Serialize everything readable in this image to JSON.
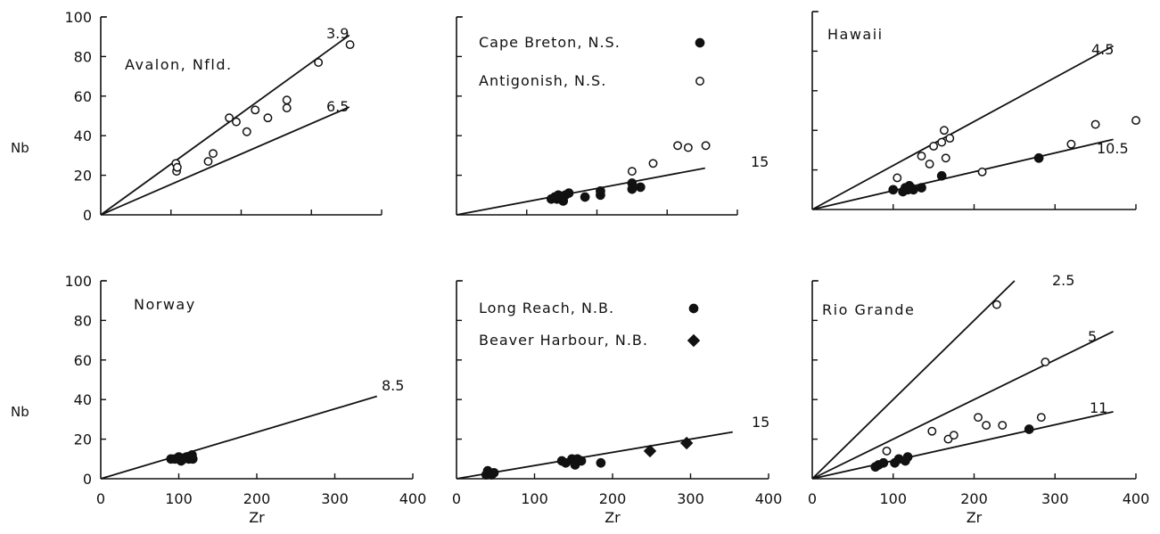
{
  "chart_data": [
    {
      "type": "scatter",
      "title": "Avalon, Nfld.",
      "xlabel": "",
      "ylabel": "Nb",
      "xlim": [
        0,
        400
      ],
      "ylim": [
        0,
        100
      ],
      "x_ticks": [],
      "y_ticks": [
        "0",
        "20",
        "40",
        "60",
        "80",
        "100"
      ],
      "series": [
        {
          "marker": "open-circle",
          "x": [
            107,
            108,
            109,
            153,
            160,
            183,
            193,
            208,
            220,
            238,
            265,
            265,
            310,
            355
          ],
          "y": [
            26,
            22,
            24,
            27,
            31,
            49,
            47,
            42,
            53,
            49,
            58,
            54,
            77,
            86
          ]
        }
      ],
      "ratio_lines": [
        {
          "label": "3.9",
          "ratio": 3.9
        },
        {
          "label": "6.5",
          "ratio": 6.5
        }
      ]
    },
    {
      "type": "scatter",
      "title": "",
      "xlabel": "",
      "ylabel": "",
      "xlim": [
        0,
        400
      ],
      "ylim": [
        0,
        100
      ],
      "x_ticks": [],
      "y_ticks": [],
      "legend": [
        {
          "label": "Cape Breton, N.S.",
          "marker": "filled-circle"
        },
        {
          "label": "Antigonish, N.S.",
          "marker": "open-circle"
        }
      ],
      "series": [
        {
          "marker": "filled-circle",
          "x": [
            135,
            140,
            143,
            145,
            148,
            150,
            152,
            155,
            160,
            183,
            205,
            205,
            250,
            250,
            262
          ],
          "y": [
            8,
            9,
            8,
            10,
            8,
            9,
            7,
            10,
            11,
            9,
            10,
            12,
            16,
            13,
            14
          ]
        },
        {
          "marker": "open-circle",
          "x": [
            250,
            280,
            315,
            330,
            355
          ],
          "y": [
            22,
            26,
            35,
            34,
            35
          ]
        }
      ],
      "ratio_lines": [
        {
          "label": "15",
          "ratio": 15
        }
      ]
    },
    {
      "type": "scatter",
      "title": "Hawaii",
      "xlabel": "",
      "ylabel": "",
      "xlim": [
        0,
        400
      ],
      "ylim": [
        0,
        100
      ],
      "x_ticks": [],
      "y_ticks": [],
      "series": [
        {
          "marker": "filled-circle",
          "x": [
            100,
            112,
            115,
            118,
            120,
            122,
            125,
            135,
            160,
            280
          ],
          "y": [
            10,
            9,
            11,
            10,
            12,
            11,
            10,
            11,
            17,
            26
          ]
        },
        {
          "marker": "open-circle",
          "x": [
            105,
            135,
            145,
            150,
            160,
            165,
            170,
            163,
            210,
            320,
            350,
            400
          ],
          "y": [
            16,
            27,
            23,
            32,
            34,
            26,
            36,
            40,
            19,
            33,
            43,
            45
          ]
        }
      ],
      "ratio_lines": [
        {
          "label": "4.5",
          "ratio": 4.5
        },
        {
          "label": "10.5",
          "ratio": 10.5
        }
      ]
    },
    {
      "type": "scatter",
      "title": "Norway",
      "xlabel": "Zr",
      "ylabel": "Nb",
      "xlim": [
        0,
        400
      ],
      "ylim": [
        0,
        100
      ],
      "x_ticks": [
        "0",
        "100",
        "200",
        "300",
        "400"
      ],
      "y_ticks": [
        "0",
        "20",
        "40",
        "60",
        "80",
        "100"
      ],
      "series": [
        {
          "marker": "filled-circle",
          "x": [
            90,
            95,
            100,
            103,
            106,
            110,
            113,
            117,
            118
          ],
          "y": [
            10,
            10,
            11,
            9,
            10,
            11,
            10,
            12,
            10
          ]
        }
      ],
      "ratio_lines": [
        {
          "label": "8.5",
          "ratio": 8.5
        }
      ]
    },
    {
      "type": "scatter",
      "title": "",
      "xlabel": "Zr",
      "ylabel": "",
      "xlim": [
        0,
        400
      ],
      "ylim": [
        0,
        100
      ],
      "x_ticks": [
        "0",
        "100",
        "200",
        "300",
        "400"
      ],
      "y_ticks": [],
      "legend": [
        {
          "label": "Long Reach, N.B.",
          "marker": "filled-circle"
        },
        {
          "label": "Beaver Harbour, N.B.",
          "marker": "filled-diamond"
        }
      ],
      "series": [
        {
          "marker": "filled-circle",
          "x": [
            38,
            40,
            42,
            45,
            48,
            135,
            140,
            148,
            150,
            152,
            155,
            160,
            185
          ],
          "y": [
            2,
            4,
            3,
            2,
            3,
            9,
            8,
            10,
            9,
            7,
            10,
            9,
            8
          ]
        },
        {
          "marker": "filled-diamond",
          "x": [
            248,
            295
          ],
          "y": [
            14,
            18
          ]
        }
      ],
      "ratio_lines": [
        {
          "label": "15",
          "ratio": 15
        }
      ]
    },
    {
      "type": "scatter",
      "title": "Rio Grande",
      "xlabel": "Zr",
      "ylabel": "",
      "xlim": [
        0,
        400
      ],
      "ylim": [
        0,
        100
      ],
      "x_ticks": [
        "0",
        "100",
        "200",
        "300",
        "400"
      ],
      "y_ticks": [],
      "series": [
        {
          "marker": "filled-circle",
          "x": [
            78,
            82,
            88,
            102,
            107,
            115,
            118,
            268
          ],
          "y": [
            6,
            7,
            8,
            8,
            10,
            9,
            11,
            25
          ]
        },
        {
          "marker": "open-circle",
          "x": [
            92,
            148,
            168,
            175,
            205,
            215,
            235,
            283,
            288,
            228
          ],
          "y": [
            14,
            24,
            20,
            22,
            31,
            27,
            27,
            31,
            59,
            88
          ]
        }
      ],
      "ratio_lines": [
        {
          "label": "2.5",
          "ratio": 2.5
        },
        {
          "label": "5",
          "ratio": 5
        },
        {
          "label": "11",
          "ratio": 11
        }
      ]
    }
  ]
}
